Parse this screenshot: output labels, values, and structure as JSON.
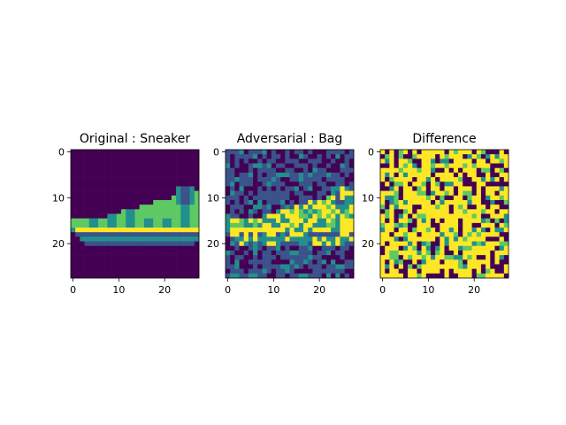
{
  "figure": {
    "panels": [
      {
        "title": "Original : Sneaker"
      },
      {
        "title": "Adversarial : Bag"
      },
      {
        "title": "Difference"
      }
    ]
  },
  "colors": {
    "viridis_dark": "#440154",
    "viridis_blue": "#3b528b",
    "viridis_teal": "#21908d",
    "viridis_green": "#5ec962",
    "viridis_yellow": "#fde725"
  },
  "chart_data": [
    {
      "type": "heatmap",
      "title": "Original : Sneaker",
      "colormap": "viridis",
      "image_size": [
        28,
        28
      ],
      "xlim": [
        0,
        28
      ],
      "ylim": [
        28,
        0
      ],
      "xticks": [
        0,
        10,
        20
      ],
      "yticks": [
        0,
        10,
        20
      ],
      "content": "sneaker silhouette on dark background"
    },
    {
      "type": "heatmap",
      "title": "Adversarial : Bag",
      "colormap": "viridis",
      "image_size": [
        28,
        28
      ],
      "xlim": [
        0,
        28
      ],
      "ylim": [
        28,
        0
      ],
      "xticks": [
        0,
        10,
        20
      ],
      "yticks": [
        0,
        10,
        20
      ],
      "content": "sneaker with adversarial blocky noise"
    },
    {
      "type": "heatmap",
      "title": "Difference",
      "colormap": "viridis",
      "image_size": [
        28,
        28
      ],
      "xlim": [
        0,
        28
      ],
      "ylim": [
        28,
        0
      ],
      "xticks": [
        0,
        10,
        20
      ],
      "yticks": [
        0,
        10,
        20
      ],
      "content": "mostly saturated yellow/purple difference map"
    }
  ]
}
